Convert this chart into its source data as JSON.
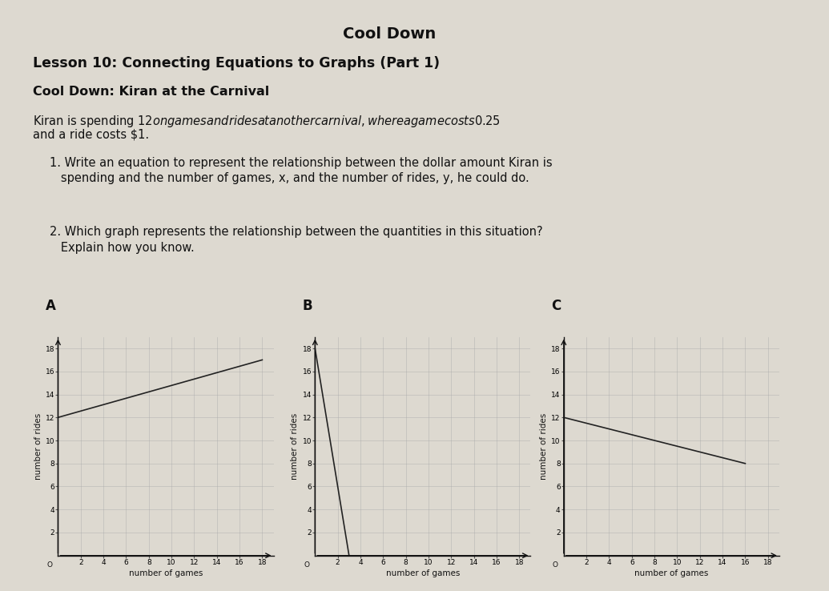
{
  "title": "Cool Down",
  "lesson_title": "Lesson 10: Connecting Equations to Graphs (Part 1)",
  "cooldown_title": "Cool Down: Kiran at the Carnival",
  "paragraph_line1": "Kiran is spending $12 on games and rides at another carnival, where a game costs $0.25",
  "paragraph_line2": "and a ride costs $1.",
  "q1_line1": "1. Write an equation to represent the relationship between the dollar amount Kiran is",
  "q1_line2": "   spending and the number of games, x, and the number of rides, y, he could do.",
  "q2_line1": "2. Which graph represents the relationship between the quantities in this situation?",
  "q2_line2": "   Explain how you know.",
  "graph_labels": [
    "A",
    "B",
    "C"
  ],
  "xlabel": "number of games",
  "ylabel": "number of rides",
  "xlim": [
    0,
    19
  ],
  "ylim": [
    0,
    19
  ],
  "xticks": [
    2,
    4,
    6,
    8,
    10,
    12,
    14,
    16,
    18
  ],
  "yticks": [
    2,
    4,
    6,
    8,
    10,
    12,
    14,
    16,
    18
  ],
  "graph_A": {
    "x": [
      0,
      18
    ],
    "y": [
      12,
      17
    ]
  },
  "graph_B": {
    "x": [
      0,
      3
    ],
    "y": [
      18,
      0
    ]
  },
  "graph_C": {
    "x": [
      0,
      16
    ],
    "y": [
      12,
      8
    ]
  },
  "bg_color": "#ddd9d0",
  "line_color": "#222222",
  "grid_color": "#aaaaaa",
  "text_color": "#111111",
  "font_family": "DejaVu Sans"
}
